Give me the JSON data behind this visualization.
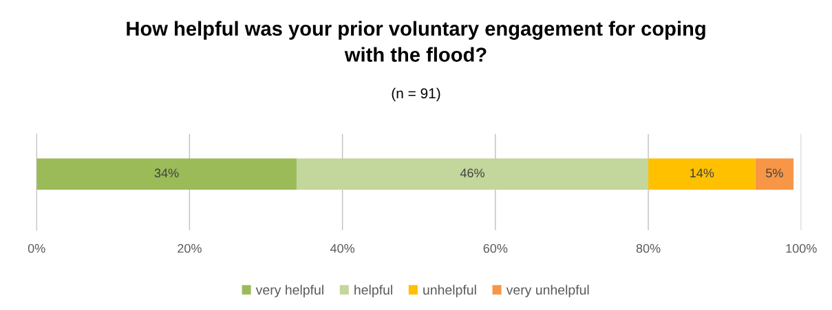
{
  "chart_data": {
    "type": "bar",
    "orientation": "horizontal",
    "stacked": true,
    "title": "How helpful was your prior voluntary engagement for coping\nwith the flood?",
    "subtitle": "(n = 91)",
    "categories": [
      null
    ],
    "series": [
      {
        "name": "very helpful",
        "color": "#9bbb59",
        "values": [
          34
        ],
        "value_labels": [
          "34%"
        ]
      },
      {
        "name": "helpful",
        "color": "#c3d69b",
        "values": [
          46
        ],
        "value_labels": [
          "46%"
        ]
      },
      {
        "name": "unhelpful",
        "color": "#ffc000",
        "values": [
          14
        ],
        "value_labels": [
          "14%"
        ]
      },
      {
        "name": "very unhelpful",
        "color": "#f79646",
        "values": [
          5
        ],
        "value_labels": [
          "5%"
        ]
      }
    ],
    "xlim": [
      0,
      100
    ],
    "xticks": [
      {
        "value": 0,
        "label": "0%"
      },
      {
        "value": 20,
        "label": "20%"
      },
      {
        "value": 40,
        "label": "40%"
      },
      {
        "value": 60,
        "label": "60%"
      },
      {
        "value": 80,
        "label": "80%"
      },
      {
        "value": 100,
        "label": "100%"
      }
    ],
    "grid": "x",
    "legend": "bottom"
  }
}
